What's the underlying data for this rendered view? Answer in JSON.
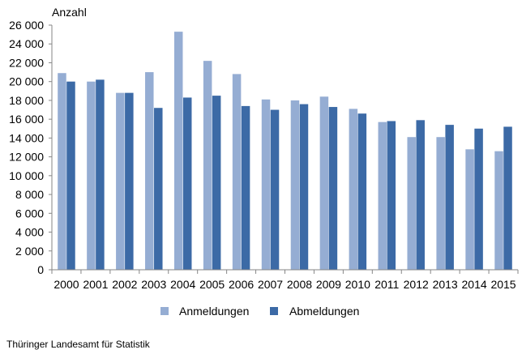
{
  "chart_data": {
    "type": "bar",
    "title": "",
    "xlabel": "",
    "ylabel": "Anzahl",
    "ylim": [
      0,
      26000
    ],
    "y_ticks": [
      "0",
      "2 000",
      "4 000",
      "6 000",
      "8 000",
      "10 000",
      "12 000",
      "14 000",
      "16 000",
      "18 000",
      "20 000",
      "22 000",
      "24 000",
      "26 000"
    ],
    "categories": [
      "2000",
      "2001",
      "2002",
      "2003",
      "2004",
      "2005",
      "2006",
      "2007",
      "2008",
      "2009",
      "2010",
      "2011",
      "2012",
      "2013",
      "2014",
      "2015"
    ],
    "series": [
      {
        "name": "Anmeldungen",
        "color": "#95add3",
        "values": [
          20900,
          20000,
          18800,
          21000,
          25300,
          22200,
          20800,
          18100,
          18000,
          18400,
          17100,
          15700,
          14100,
          14100,
          12800,
          12600
        ]
      },
      {
        "name": "Abmeldungen",
        "color": "#3c6aa6",
        "values": [
          20000,
          20200,
          18800,
          17200,
          18300,
          18500,
          17400,
          17000,
          17600,
          17300,
          16600,
          15800,
          15900,
          15400,
          15000,
          15200
        ]
      }
    ],
    "grid": false,
    "legend": "bottom"
  },
  "footer": {
    "source": "Thüringer Landesamt für Statistik"
  }
}
